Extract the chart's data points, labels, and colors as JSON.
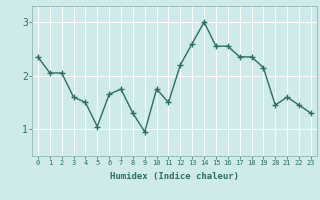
{
  "x": [
    0,
    1,
    2,
    3,
    4,
    5,
    6,
    7,
    8,
    9,
    10,
    11,
    12,
    13,
    14,
    15,
    16,
    17,
    18,
    19,
    20,
    21,
    22,
    23
  ],
  "y": [
    2.35,
    2.05,
    2.05,
    1.6,
    1.5,
    1.05,
    1.65,
    1.75,
    1.3,
    0.95,
    1.75,
    1.5,
    2.2,
    2.6,
    3.0,
    2.55,
    2.55,
    2.35,
    2.35,
    2.15,
    1.45,
    1.6,
    1.45,
    1.3
  ],
  "xlabel": "Humidex (Indice chaleur)",
  "yticks": [
    1,
    2,
    3
  ],
  "ylim": [
    0.5,
    3.3
  ],
  "xlim": [
    -0.5,
    23.5
  ],
  "line_color": "#2d6e63",
  "bg_color": "#ceeaea",
  "grid_color": "#ffffff",
  "grid_major_color": "#c0d8d8",
  "marker": "+",
  "marker_size": 4,
  "linewidth": 1.0,
  "xlabel_fontsize": 6.5,
  "ytick_fontsize": 7,
  "xtick_fontsize": 5.0
}
